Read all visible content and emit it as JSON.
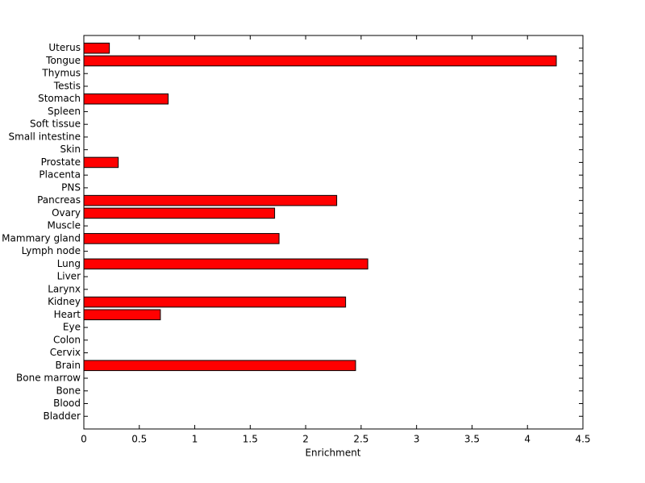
{
  "chart_data": {
    "type": "barh",
    "x_label": "Enrichment",
    "color": "#ff0000",
    "categories": [
      "Bladder",
      "Blood",
      "Bone",
      "Bone marrow",
      "Brain",
      "Cervix",
      "Colon",
      "Eye",
      "Heart",
      "Kidney",
      "Larynx",
      "Liver",
      "Lung",
      "Lymph node",
      "Mammary gland",
      "Muscle",
      "Ovary",
      "Pancreas",
      "PNS",
      "Placenta",
      "Prostate",
      "Skin",
      "Small intestine",
      "Soft tissue",
      "Spleen",
      "Stomach",
      "Testis",
      "Thymus",
      "Tongue",
      "Uterus"
    ],
    "values": [
      0,
      0,
      0,
      0,
      2.45,
      0,
      0,
      0,
      0.69,
      2.36,
      0,
      0,
      2.56,
      0,
      1.76,
      0,
      1.72,
      2.28,
      0,
      0,
      0.31,
      0,
      0,
      0,
      0,
      0.76,
      0,
      0,
      4.26,
      0.23
    ],
    "xlim": [
      0,
      4.5
    ],
    "xticks": [
      0,
      0.5,
      1,
      1.5,
      2,
      2.5,
      3,
      3.5,
      4,
      4.5
    ]
  }
}
